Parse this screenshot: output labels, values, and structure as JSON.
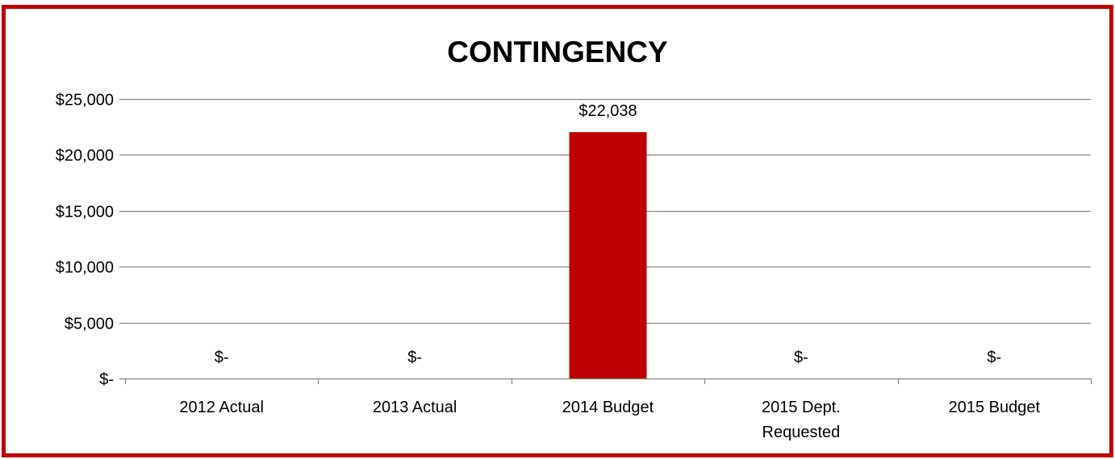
{
  "chart_data": {
    "type": "bar",
    "title": "CONTINGENCY",
    "xlabel": "",
    "ylabel": "",
    "categories": [
      "2012 Actual",
      "2013 Actual",
      "2014 Budget",
      "2015 Dept. Requested",
      "2015 Budget"
    ],
    "category_lines": [
      [
        "2012 Actual"
      ],
      [
        "2013 Actual"
      ],
      [
        "2014 Budget"
      ],
      [
        "2015 Dept.",
        "Requested"
      ],
      [
        "2015 Budget"
      ]
    ],
    "values": [
      0,
      0,
      22038,
      0,
      0
    ],
    "data_labels": [
      "$-",
      "$-",
      "$22,038",
      "$-",
      "$-"
    ],
    "ylim": [
      0,
      25000
    ],
    "yticks": [
      0,
      5000,
      10000,
      15000,
      20000,
      25000
    ],
    "ytick_labels": [
      "$-",
      "$5,000",
      "$10,000",
      "$15,000",
      "$20,000",
      "$25,000"
    ],
    "grid": true,
    "legend": "none",
    "colors": {
      "bar": "#c00000",
      "border": "#c00000",
      "grid": "#868686",
      "axis": "#868686"
    }
  }
}
